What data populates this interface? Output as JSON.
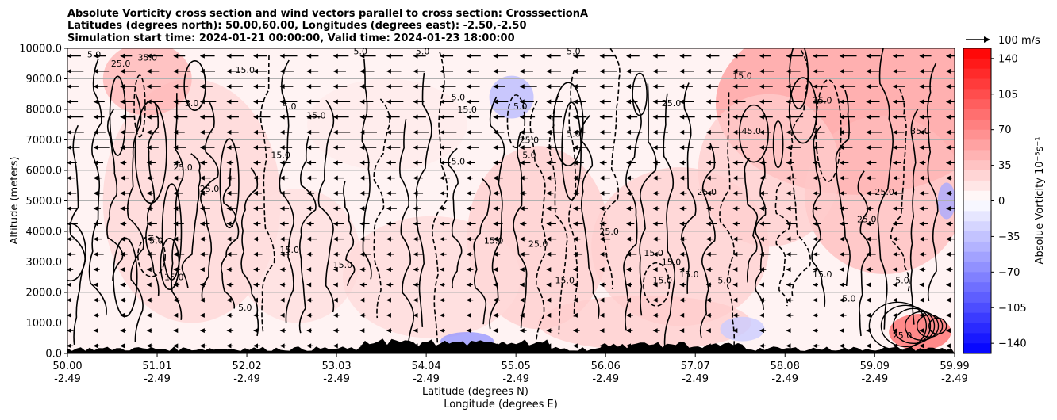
{
  "chart_data": {
    "type": "heatmap",
    "title_lines": [
      "Absolute Vorticity cross section and wind vectors parallel to cross section: CrosssectionA",
      "Latitudes (degrees north): 50.00,60.00, Longitudes (degrees east): -2.50,-2.50",
      "Simulation start time: 2024-01-21 00:00:00, Valid time: 2024-01-23 18:00:00"
    ],
    "ylabel": "Altitude (meters)",
    "xlabel_lat": "Latitude (degrees N)",
    "xlabel_lon": "Longitude (degrees E)",
    "xlim": [
      50.0,
      59.99
    ],
    "ylim": [
      0,
      10000
    ],
    "x_ticks": [
      {
        "lat": "50.00",
        "lon": "-2.49",
        "value": 50.0
      },
      {
        "lat": "51.01",
        "lon": "-2.49",
        "value": 51.01
      },
      {
        "lat": "52.02",
        "lon": "-2.49",
        "value": 52.02
      },
      {
        "lat": "53.03",
        "lon": "-2.49",
        "value": 53.03
      },
      {
        "lat": "54.04",
        "lon": "-2.49",
        "value": 54.04
      },
      {
        "lat": "55.05",
        "lon": "-2.49",
        "value": 55.05
      },
      {
        "lat": "56.06",
        "lon": "-2.49",
        "value": 56.06
      },
      {
        "lat": "57.07",
        "lon": "-2.49",
        "value": 57.07
      },
      {
        "lat": "58.08",
        "lon": "-2.49",
        "value": 58.08
      },
      {
        "lat": "59.09",
        "lon": "-2.49",
        "value": 59.09
      },
      {
        "lat": "59.99",
        "lon": "-2.49",
        "value": 59.99
      }
    ],
    "y_ticks": [
      {
        "label": "0.0",
        "value": 0
      },
      {
        "label": "1000.0",
        "value": 1000
      },
      {
        "label": "2000.0",
        "value": 2000
      },
      {
        "label": "3000.0",
        "value": 3000
      },
      {
        "label": "4000.0",
        "value": 4000
      },
      {
        "label": "5000.0",
        "value": 5000
      },
      {
        "label": "6000.0",
        "value": 6000
      },
      {
        "label": "7000.0",
        "value": 7000
      },
      {
        "label": "8000.0",
        "value": 8000
      },
      {
        "label": "9000.0",
        "value": 9000
      },
      {
        "label": "10000.0",
        "value": 10000
      }
    ],
    "grid": "horizontal",
    "colorbar": {
      "label": "Absolue Vorticity 10⁻⁵s⁻¹",
      "range": [
        -150,
        150
      ],
      "ticks": [
        "140",
        "105",
        "70",
        "35",
        "0",
        "−35",
        "−70",
        "−105",
        "−140"
      ],
      "tick_values": [
        140,
        105,
        70,
        35,
        0,
        -35,
        -70,
        -105,
        -140
      ],
      "cmap": "bwr",
      "colors": {
        "low": "#0000ff",
        "mid": "#ffffff",
        "high": "#ff0000"
      }
    },
    "quiver_key": {
      "label": "100 m/s",
      "magnitude": 100
    },
    "wind_direction": "southward (pointing to lower latitude)",
    "contour_levels": [
      -5.0,
      5.0,
      15.0,
      25.0,
      35.0,
      45.0
    ],
    "contour_labels": [
      {
        "text": "5.0",
        "x": 50.3,
        "y": 9700
      },
      {
        "text": "25.0",
        "x": 50.6,
        "y": 9400
      },
      {
        "text": "35.0",
        "x": 50.9,
        "y": 9600
      },
      {
        "text": "15.0",
        "x": 52.0,
        "y": 9200
      },
      {
        "text": "5.0",
        "x": 51.4,
        "y": 8100
      },
      {
        "text": "25.0",
        "x": 51.3,
        "y": 6000
      },
      {
        "text": "15.0",
        "x": 52.4,
        "y": 6400
      },
      {
        "text": "5.0",
        "x": 53.3,
        "y": 9800
      },
      {
        "text": "5.0",
        "x": 52.5,
        "y": 8000
      },
      {
        "text": "15.0",
        "x": 52.8,
        "y": 7700
      },
      {
        "text": "25.0",
        "x": 51.6,
        "y": 5300
      },
      {
        "text": "5.0",
        "x": 51.0,
        "y": 3600
      },
      {
        "text": "15.0",
        "x": 52.5,
        "y": 3300
      },
      {
        "text": "15.0",
        "x": 51.2,
        "y": 2400
      },
      {
        "text": "5.0",
        "x": 52.0,
        "y": 1400
      },
      {
        "text": "15.0",
        "x": 53.1,
        "y": 2800
      },
      {
        "text": "5.0",
        "x": 54.0,
        "y": 9800
      },
      {
        "text": "5.0",
        "x": 54.4,
        "y": 8300
      },
      {
        "text": "15.0",
        "x": 54.5,
        "y": 7900
      },
      {
        "text": "5.0",
        "x": 54.4,
        "y": 6200
      },
      {
        "text": "15.0",
        "x": 54.8,
        "y": 3600
      },
      {
        "text": "25.0",
        "x": 55.3,
        "y": 3500
      },
      {
        "text": "5.0",
        "x": 55.1,
        "y": 8000
      },
      {
        "text": "25.0",
        "x": 55.2,
        "y": 6900
      },
      {
        "text": "5.0",
        "x": 55.2,
        "y": 6400
      },
      {
        "text": "5.0",
        "x": 55.7,
        "y": 9800
      },
      {
        "text": "5.0",
        "x": 55.7,
        "y": 7100
      },
      {
        "text": "15.0",
        "x": 55.6,
        "y": 2300
      },
      {
        "text": "25.0",
        "x": 56.1,
        "y": 3900
      },
      {
        "text": "15.0",
        "x": 56.6,
        "y": 3200
      },
      {
        "text": "15.0",
        "x": 56.8,
        "y": 2900
      },
      {
        "text": "25.0",
        "x": 56.8,
        "y": 8100
      },
      {
        "text": "15.0",
        "x": 57.0,
        "y": 2500
      },
      {
        "text": "15.0",
        "x": 56.7,
        "y": 2300
      },
      {
        "text": "5.0",
        "x": 57.4,
        "y": 2300
      },
      {
        "text": "25.0",
        "x": 57.2,
        "y": 5200
      },
      {
        "text": "45.0",
        "x": 57.7,
        "y": 7200
      },
      {
        "text": "15.0",
        "x": 57.6,
        "y": 9000
      },
      {
        "text": "35.0",
        "x": 58.5,
        "y": 8200
      },
      {
        "text": "25.0",
        "x": 59.2,
        "y": 5200
      },
      {
        "text": "25.0",
        "x": 59.0,
        "y": 4300
      },
      {
        "text": "35.0",
        "x": 59.6,
        "y": 7200
      },
      {
        "text": "5.0",
        "x": 59.4,
        "y": 2300
      },
      {
        "text": "25.0",
        "x": 59.4,
        "y": 500
      },
      {
        "text": "15.0",
        "x": 58.5,
        "y": 2500
      },
      {
        "text": "5.0",
        "x": 58.8,
        "y": 1700
      }
    ]
  }
}
